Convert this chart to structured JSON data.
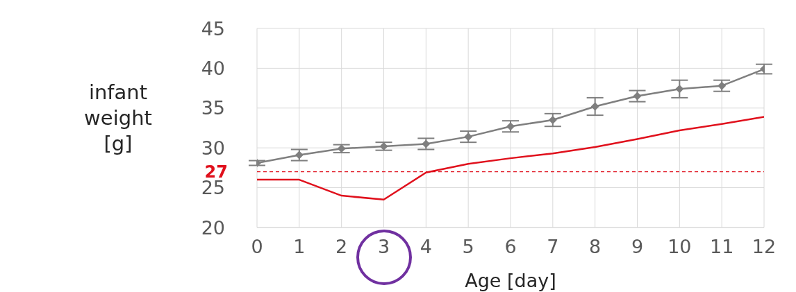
{
  "chart_data": {
    "type": "line",
    "xlabel": "Age [day]",
    "ylabel": "infant weight [g]",
    "x": [
      0,
      1,
      2,
      3,
      4,
      5,
      6,
      7,
      8,
      9,
      10,
      11,
      12
    ],
    "xlim": [
      0,
      12
    ],
    "xticks": [
      0,
      1,
      2,
      3,
      4,
      5,
      6,
      7,
      8,
      9,
      10,
      11,
      12
    ],
    "ylim": [
      20,
      45
    ],
    "yticks": [
      20,
      25,
      30,
      35,
      40,
      45
    ],
    "grid": true,
    "legend": false,
    "series": [
      {
        "color": "#7f7f7f",
        "marker": "diamond",
        "values": [
          28.1,
          29.1,
          29.9,
          30.2,
          30.5,
          31.4,
          32.7,
          33.5,
          35.2,
          36.5,
          37.4,
          37.8,
          39.9
        ],
        "errors": [
          0.3,
          0.7,
          0.5,
          0.5,
          0.7,
          0.7,
          0.7,
          0.8,
          1.1,
          0.7,
          1.1,
          0.7,
          0.6
        ]
      },
      {
        "color": "#e0101c",
        "marker": "none",
        "values": [
          26,
          26,
          24,
          23.5,
          26.9,
          28,
          28.7,
          29.3,
          30.1,
          31.1,
          32.2,
          33,
          33.9
        ]
      }
    ],
    "ref_lines": [
      {
        "axis": "y",
        "value": 27,
        "label": "27",
        "color": "#e0101c",
        "line_style": "dashed"
      }
    ]
  }
}
